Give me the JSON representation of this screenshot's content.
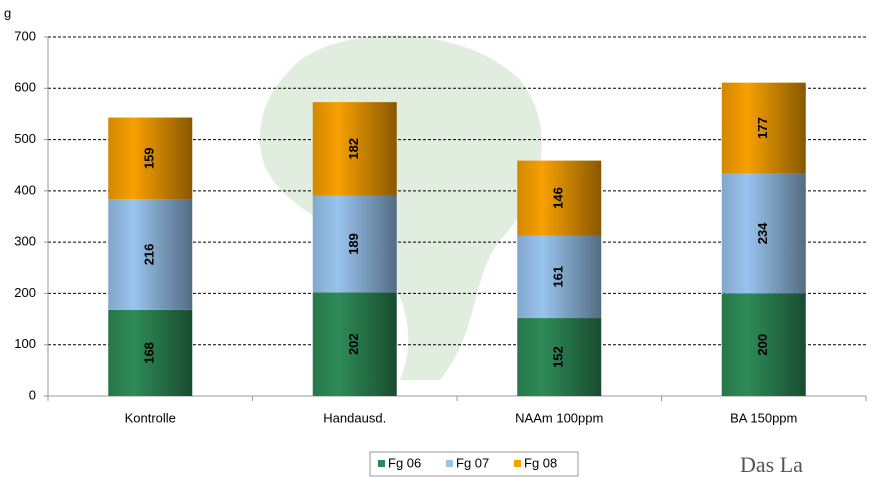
{
  "chart_data": {
    "type": "bar",
    "stacked": true,
    "y_label": "g",
    "categories": [
      "Kontrolle",
      "Handausd.",
      "NAAm 100ppm",
      "BA 150ppm"
    ],
    "series": [
      {
        "name": "Fg 06",
        "color": "#2e8b57",
        "values": [
          168,
          202,
          152,
          200
        ]
      },
      {
        "name": "Fg 07",
        "color": "#99c4ee",
        "values": [
          216,
          189,
          161,
          234
        ]
      },
      {
        "name": "Fg 08",
        "color": "#f7a000",
        "values": [
          159,
          182,
          146,
          177
        ]
      }
    ],
    "ylim": [
      0,
      700
    ],
    "yticks": [
      0,
      100,
      200,
      300,
      400,
      500,
      600,
      700
    ],
    "grid": true,
    "logo_text": "Das La"
  }
}
